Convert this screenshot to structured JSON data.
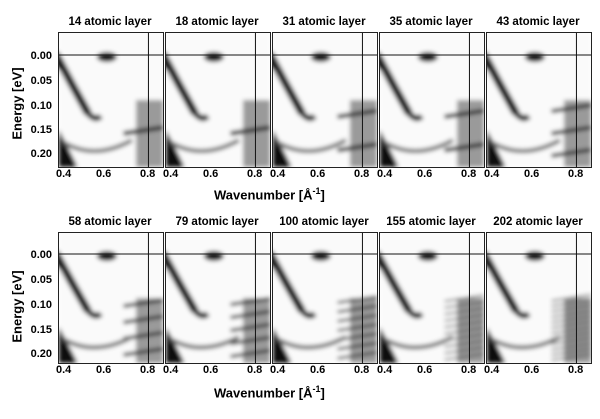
{
  "figure": {
    "ylabel": "Energy  [eV]",
    "xlabel_main": "Wavenumber [Å",
    "xlabel_sup": "-1",
    "xlabel_end": "]",
    "yticks": [
      "0.00",
      "0.05",
      "0.10",
      "0.15",
      "0.20"
    ],
    "xticks": [
      "0.4",
      "0.6",
      "0.8"
    ],
    "top_row": [
      {
        "title": "14 atomic layer",
        "layers": 14
      },
      {
        "title": "18 atomic layer",
        "layers": 18
      },
      {
        "title": "31 atomic layer",
        "layers": 31
      },
      {
        "title": "35 atomic layer",
        "layers": 35
      },
      {
        "title": "43 atomic layer",
        "layers": 43
      }
    ],
    "bottom_row": [
      {
        "title": "58 atomic layer",
        "layers": 58
      },
      {
        "title": "79 atomic layer",
        "layers": 79
      },
      {
        "title": "100 atomic layer",
        "layers": 100
      },
      {
        "title": "155 atomic layer",
        "layers": 155
      },
      {
        "title": "202 atomic layer",
        "layers": 202
      }
    ]
  }
}
